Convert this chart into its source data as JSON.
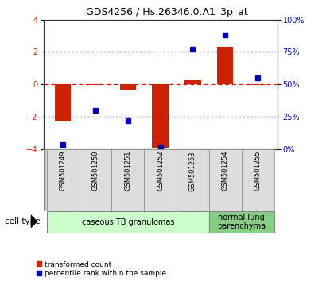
{
  "title": "GDS4256 / Hs.26346.0.A1_3p_at",
  "samples": [
    "GSM501249",
    "GSM501250",
    "GSM501251",
    "GSM501252",
    "GSM501253",
    "GSM501254",
    "GSM501255"
  ],
  "transformed_count": [
    -2.3,
    -0.05,
    -0.35,
    -3.9,
    0.25,
    2.3,
    -0.05
  ],
  "percentile_rank": [
    3.5,
    30,
    22,
    1.0,
    77,
    88,
    55
  ],
  "ylim_left": [
    -4,
    4
  ],
  "ylim_right": [
    0,
    100
  ],
  "yticks_left": [
    -4,
    -2,
    0,
    2,
    4
  ],
  "yticks_right": [
    0,
    25,
    50,
    75,
    100
  ],
  "ytick_labels_right": [
    "0%",
    "25%",
    "50%",
    "75%",
    "100%"
  ],
  "hlines": [
    2,
    0,
    -2
  ],
  "hline_styles": [
    "dotted",
    "dashed",
    "dotted"
  ],
  "hline_colors": [
    "black",
    "red",
    "black"
  ],
  "bar_color": "#CC2200",
  "dot_color": "#0000BB",
  "cell_type_groups": [
    {
      "label": "caseous TB granulomas",
      "samples": [
        0,
        1,
        2,
        3,
        4
      ],
      "color": "#ccffcc"
    },
    {
      "label": "normal lung\nparenchyma",
      "samples": [
        5,
        6
      ],
      "color": "#88cc88"
    }
  ],
  "legend_items": [
    {
      "label": "transformed count",
      "color": "#CC2200"
    },
    {
      "label": "percentile rank within the sample",
      "color": "#0000BB"
    }
  ],
  "cell_type_label": "cell type",
  "background_color": "#ffffff",
  "plot_bg_color": "#ffffff",
  "tick_label_color_left": "#CC2200",
  "tick_label_color_right": "#0000BB",
  "sample_box_color": "#dddddd",
  "sample_box_edge": "#aaaaaa"
}
